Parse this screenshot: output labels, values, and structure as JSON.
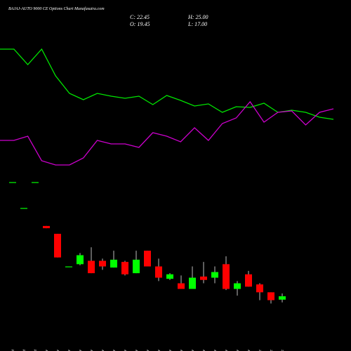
{
  "chart_data": [
    {
      "type": "candlestick",
      "title": "BAJAJ-AUTO 9000 CE Options Chart Munafasutra.com",
      "stats": [
        "C: 22.45",
        "H: 25.00",
        "O: 19.45",
        "L: 17.00"
      ],
      "categories": [
        "29 Oct",
        "30 Oct",
        "31 Oct",
        "01 Nov",
        "04 Nov",
        "05 Nov",
        "07 Nov",
        "08 Nov",
        "11 Nov",
        "12 Nov",
        "13 Nov",
        "14 Nov",
        "18 Nov",
        "19 Nov",
        "20 Nov",
        "21 Nov",
        "22 Nov",
        "25 Nov",
        "26 Nov",
        "27 Nov",
        "28 Nov",
        "29 Nov",
        "02 Dec",
        "03 Dec",
        "04 Dec"
      ],
      "open": [
        124,
        101,
        124,
        85,
        78,
        49,
        51,
        54,
        54,
        48,
        53,
        43,
        63,
        49,
        38,
        34,
        29,
        40,
        39,
        51,
        29,
        42,
        33,
        26,
        19.45
      ],
      "high": [
        124,
        101,
        124,
        85,
        78,
        49,
        61,
        66,
        56,
        63,
        54,
        63,
        63,
        56,
        43,
        41,
        49,
        53,
        49,
        58,
        36,
        45,
        34,
        26,
        25
      ],
      "low": [
        124,
        101,
        124,
        83,
        57,
        49,
        50,
        43,
        46,
        48,
        41,
        43,
        49,
        36,
        37,
        29,
        29,
        34,
        34,
        28,
        23,
        31,
        19,
        16,
        17
      ],
      "close": [
        124,
        101,
        124,
        83,
        57,
        49,
        59,
        43,
        49,
        55,
        42,
        55,
        49,
        39,
        42,
        29,
        39,
        37,
        44,
        29,
        34,
        31,
        26,
        19,
        22.45
      ],
      "up_color": "#00ff00",
      "down_color": "#ff0000",
      "ylim": [
        0,
        286
      ]
    },
    {
      "type": "line",
      "ylim": [
        0,
        500
      ],
      "series": [
        {
          "color": "#00e600",
          "values": [
            430,
            430,
            408,
            430,
            392,
            367,
            358,
            367,
            363,
            360,
            363,
            351,
            364,
            357,
            349,
            352,
            340,
            348,
            347,
            353,
            340,
            343,
            340,
            333,
            330
          ]
        },
        {
          "color": "#cc00cc",
          "values": [
            300,
            300,
            306,
            271,
            265,
            265,
            275,
            300,
            295,
            295,
            290,
            311,
            306,
            298,
            318,
            300,
            324,
            332,
            355,
            326,
            340,
            342,
            322,
            340,
            345
          ]
        }
      ]
    }
  ]
}
